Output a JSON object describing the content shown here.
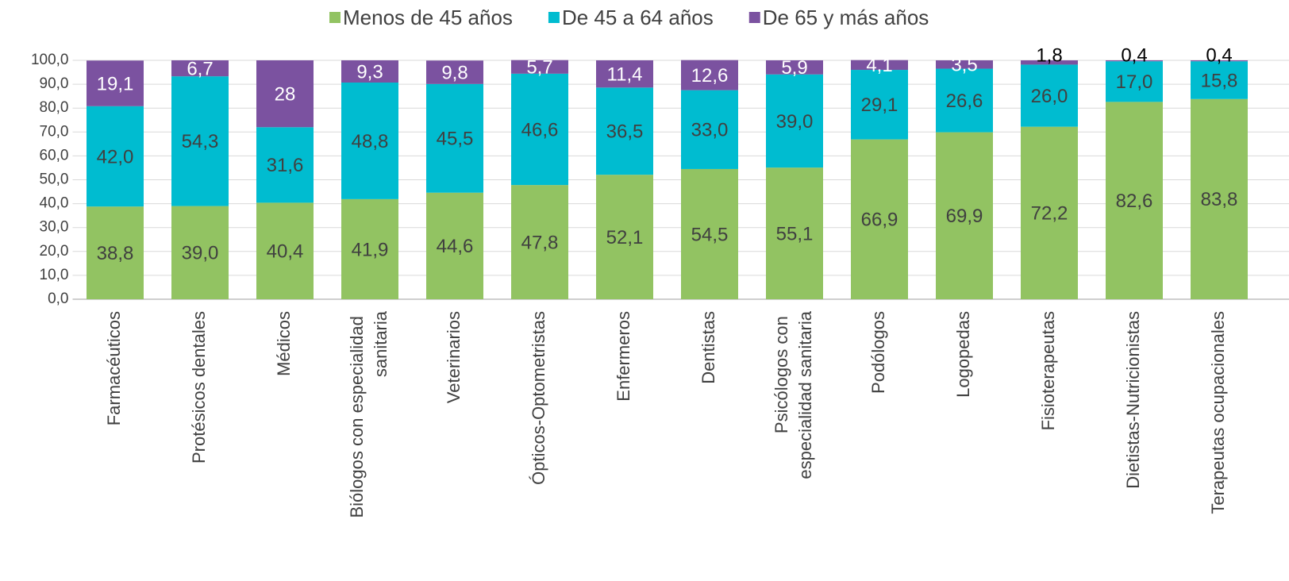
{
  "chart_data": {
    "type": "stacked_bar",
    "categories": [
      "Farmacéuticos",
      "Protésicos dentales",
      "Médicos",
      "Biólogos con especialidad sanitaria",
      "Veterinarios",
      "Ópticos-Optometristas",
      "Enfermeros",
      "Dentistas",
      "Psicólogos con especialidad sanitaria",
      "Podólogos",
      "Logopedas",
      "Fisioterapeutas",
      "Dietistas-Nutricionistas",
      "Terapeutas ocupacionales"
    ],
    "series": [
      {
        "name": "Menos de 45 años",
        "color": "#92c362",
        "values": [
          38.8,
          39.0,
          40.4,
          41.9,
          44.6,
          47.8,
          52.1,
          54.5,
          55.1,
          66.9,
          69.9,
          72.2,
          82.6,
          83.8
        ],
        "value_labels": [
          "38,8",
          "39,0",
          "40,4",
          "41,9",
          "44,6",
          "47,8",
          "52,1",
          "54,5",
          "55,1",
          "66,9",
          "69,9",
          "72,2",
          "82,6",
          "83,8"
        ]
      },
      {
        "name": "De 45 a 64 años",
        "color": "#00bcd0",
        "values": [
          42.0,
          54.3,
          31.6,
          48.8,
          45.5,
          46.6,
          36.5,
          33.0,
          39.0,
          29.1,
          26.6,
          26.0,
          17.0,
          15.8
        ],
        "value_labels": [
          "42,0",
          "54,3",
          "31,6",
          "48,8",
          "45,5",
          "46,6",
          "36,5",
          "33,0",
          "39,0",
          "29,1",
          "26,6",
          "26,0",
          "17,0",
          "15,8"
        ]
      },
      {
        "name": "De 65 y más años",
        "color": "#7b52a0",
        "values": [
          19.1,
          6.7,
          28,
          9.3,
          9.8,
          5.7,
          11.4,
          12.6,
          5.9,
          4.1,
          3.5,
          1.8,
          0.4,
          0.4
        ],
        "value_labels": [
          "19,1",
          "6,7",
          "28",
          "9,3",
          "9,8",
          "5,7",
          "11,4",
          "12,6",
          "5,9",
          "4,1",
          "3,5",
          "1,8",
          "0,4",
          "0,4"
        ]
      }
    ],
    "ylim": [
      0,
      100
    ],
    "yticks": [
      {
        "value": 0,
        "label": "0,0"
      },
      {
        "value": 10,
        "label": "10,0"
      },
      {
        "value": 20,
        "label": "20,0"
      },
      {
        "value": 30,
        "label": "30,0"
      },
      {
        "value": 40,
        "label": "40,0"
      },
      {
        "value": 50,
        "label": "50,0"
      },
      {
        "value": 60,
        "label": "60,0"
      },
      {
        "value": 70,
        "label": "70,0"
      },
      {
        "value": 80,
        "label": "80,0"
      },
      {
        "value": 90,
        "label": "90,0"
      },
      {
        "value": 100,
        "label": "100,0"
      }
    ],
    "grid": true,
    "legend": "top"
  }
}
